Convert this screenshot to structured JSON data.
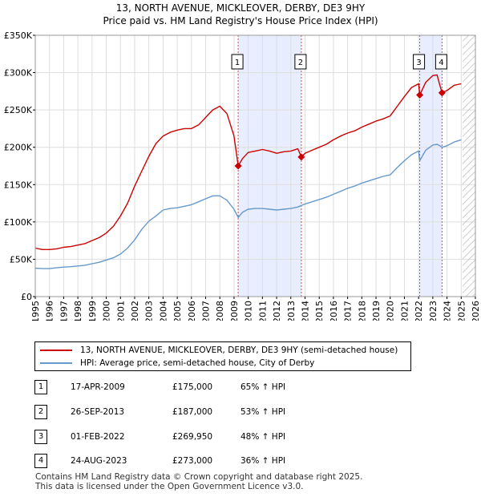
{
  "chart_data": {
    "type": "line",
    "title": "13, NORTH AVENUE, MICKLEOVER, DERBY, DE3 9HY",
    "subtitle": "Price paid vs. HM Land Registry's House Price Index (HPI)",
    "xlabel": "",
    "ylabel": "",
    "xlim": [
      1995,
      2026
    ],
    "ylim": [
      0,
      350000
    ],
    "x_ticks": [
      1995,
      1996,
      1997,
      1998,
      1999,
      2000,
      2001,
      2002,
      2003,
      2004,
      2005,
      2006,
      2007,
      2008,
      2009,
      2010,
      2011,
      2012,
      2013,
      2014,
      2015,
      2016,
      2017,
      2018,
      2019,
      2020,
      2021,
      2022,
      2023,
      2024,
      2025,
      2026
    ],
    "y_ticks": [
      {
        "value": 0,
        "label": "£0"
      },
      {
        "value": 50000,
        "label": "£50K"
      },
      {
        "value": 100000,
        "label": "£100K"
      },
      {
        "value": 150000,
        "label": "£150K"
      },
      {
        "value": 200000,
        "label": "£200K"
      },
      {
        "value": 250000,
        "label": "£250K"
      },
      {
        "value": 300000,
        "label": "£300K"
      },
      {
        "value": 350000,
        "label": "£350K"
      }
    ],
    "grid": true,
    "future_hatch_from": 2025.1,
    "sale_spans": [
      [
        2009.29,
        2013.74
      ],
      [
        2022.08,
        2023.65
      ]
    ],
    "series": [
      {
        "name": "13, NORTH AVENUE, MICKLEOVER, DERBY, DE3 9HY (semi-detached house)",
        "color": "#cc0000",
        "x": [
          1995.0,
          1995.5,
          1996.0,
          1996.5,
          1997.0,
          1997.5,
          1998.0,
          1998.5,
          1999.0,
          1999.5,
          2000.0,
          2000.5,
          2001.0,
          2001.5,
          2002.0,
          2002.5,
          2003.0,
          2003.5,
          2004.0,
          2004.5,
          2005.0,
          2005.5,
          2006.0,
          2006.5,
          2007.0,
          2007.5,
          2008.0,
          2008.5,
          2009.0,
          2009.29,
          2009.6,
          2010.0,
          2010.5,
          2011.0,
          2011.5,
          2012.0,
          2012.5,
          2013.0,
          2013.5,
          2013.74,
          2014.0,
          2014.5,
          2015.0,
          2015.5,
          2016.0,
          2016.5,
          2017.0,
          2017.5,
          2018.0,
          2018.5,
          2019.0,
          2019.5,
          2020.0,
          2020.5,
          2021.0,
          2021.5,
          2022.0,
          2022.08,
          2022.5,
          2023.0,
          2023.3,
          2023.5,
          2023.65,
          2024.0,
          2024.5,
          2025.0
        ],
        "y": [
          65000,
          63000,
          63000,
          64000,
          66000,
          67000,
          69000,
          71000,
          75000,
          79000,
          85000,
          94000,
          108000,
          125000,
          148000,
          168000,
          188000,
          205000,
          215000,
          220000,
          223000,
          225000,
          225000,
          230000,
          240000,
          250000,
          255000,
          245000,
          215000,
          175000,
          185000,
          193000,
          195000,
          197000,
          195000,
          192000,
          194000,
          195000,
          198000,
          187000,
          192000,
          196000,
          200000,
          204000,
          210000,
          215000,
          219000,
          222000,
          227000,
          231000,
          235000,
          238000,
          242000,
          255000,
          268000,
          280000,
          285000,
          269950,
          287000,
          296000,
          297000,
          283000,
          273000,
          276000,
          283000,
          285000
        ]
      },
      {
        "name": "HPI: Average price, semi-detached house, City of Derby",
        "color": "#6699cc",
        "x": [
          1995.0,
          1995.5,
          1996.0,
          1996.5,
          1997.0,
          1997.5,
          1998.0,
          1998.5,
          1999.0,
          1999.5,
          2000.0,
          2000.5,
          2001.0,
          2001.5,
          2002.0,
          2002.5,
          2003.0,
          2003.5,
          2004.0,
          2004.5,
          2005.0,
          2005.5,
          2006.0,
          2006.5,
          2007.0,
          2007.5,
          2008.0,
          2008.5,
          2009.0,
          2009.29,
          2009.6,
          2010.0,
          2010.5,
          2011.0,
          2011.5,
          2012.0,
          2012.5,
          2013.0,
          2013.5,
          2013.74,
          2014.0,
          2014.5,
          2015.0,
          2015.5,
          2016.0,
          2016.5,
          2017.0,
          2017.5,
          2018.0,
          2018.5,
          2019.0,
          2019.5,
          2020.0,
          2020.5,
          2021.0,
          2021.5,
          2022.0,
          2022.08,
          2022.5,
          2023.0,
          2023.3,
          2023.5,
          2023.65,
          2024.0,
          2024.5,
          2025.0
        ],
        "y": [
          38000,
          37500,
          37500,
          38500,
          39500,
          40000,
          41000,
          42000,
          44000,
          46000,
          49000,
          52000,
          57000,
          65000,
          76000,
          90000,
          101000,
          108000,
          116000,
          118000,
          119000,
          121000,
          123000,
          127000,
          131000,
          135000,
          135000,
          129000,
          117000,
          106000,
          113000,
          117000,
          118000,
          118000,
          117000,
          116000,
          117000,
          118000,
          120000,
          122000,
          124000,
          127000,
          130000,
          133000,
          137000,
          141000,
          145000,
          148000,
          152000,
          155000,
          158000,
          161000,
          163000,
          173000,
          182000,
          190000,
          195000,
          182000,
          196000,
          203000,
          204000,
          202000,
          200000,
          202000,
          207000,
          210000
        ]
      }
    ],
    "sales": [
      {
        "label": "1",
        "x": 2009.29,
        "y": 175000
      },
      {
        "label": "2",
        "x": 2013.74,
        "y": 187000
      },
      {
        "label": "3",
        "x": 2022.08,
        "y": 269950
      },
      {
        "label": "4",
        "x": 2023.65,
        "y": 273000
      }
    ]
  },
  "legend": {
    "property_label": "13, NORTH AVENUE, MICKLEOVER, DERBY, DE3 9HY (semi-detached house)",
    "hpi_label": "HPI: Average price, semi-detached house, City of Derby"
  },
  "transactions": [
    {
      "num": "1",
      "date": "17-APR-2009",
      "price": "£175,000",
      "hpi": "65% ↑ HPI"
    },
    {
      "num": "2",
      "date": "26-SEP-2013",
      "price": "£187,000",
      "hpi": "53% ↑ HPI"
    },
    {
      "num": "3",
      "date": "01-FEB-2022",
      "price": "£269,950",
      "hpi": "48% ↑ HPI"
    },
    {
      "num": "4",
      "date": "24-AUG-2023",
      "price": "£273,000",
      "hpi": "36% ↑ HPI"
    }
  ],
  "footer": {
    "line1": "Contains HM Land Registry data © Crown copyright and database right 2025.",
    "line2": "This data is licensed under the Open Government Licence v3.0."
  },
  "colors": {
    "property_line": "#cc0000",
    "hpi_line": "#6699cc",
    "sale_span": "#e8eeff",
    "marker": "#cc0000"
  }
}
